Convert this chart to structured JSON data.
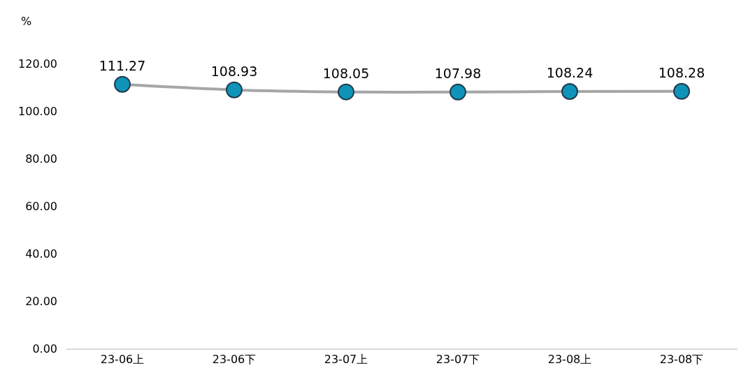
{
  "chart_data": {
    "type": "line",
    "ylabel": "%",
    "categories": [
      "23-06上",
      "23-06下",
      "23-07上",
      "23-07下",
      "23-08上",
      "23-08下"
    ],
    "series": [
      {
        "color": "#a6a6a6",
        "colors": [
          "#0f93b8",
          "#0f93b8",
          "#0f93b8",
          "#0f93b8",
          "#0f93b8",
          "#0f93b8"
        ],
        "values": [
          111.27,
          108.93,
          108.05,
          107.98,
          108.24,
          108.28
        ]
      }
    ],
    "ylim": [
      0,
      120
    ],
    "yticks": [
      {
        "value": 0,
        "label": "0.00"
      },
      {
        "value": 20,
        "label": "20.00"
      },
      {
        "value": 40,
        "label": "40.00"
      },
      {
        "value": 60,
        "label": "60.00"
      },
      {
        "value": 80,
        "label": "80.00"
      },
      {
        "value": 100,
        "label": "100.00"
      },
      {
        "value": 120,
        "label": "120.00"
      }
    ],
    "data_labels": true,
    "legend": false,
    "marker": "circle",
    "line_style": "solid"
  }
}
